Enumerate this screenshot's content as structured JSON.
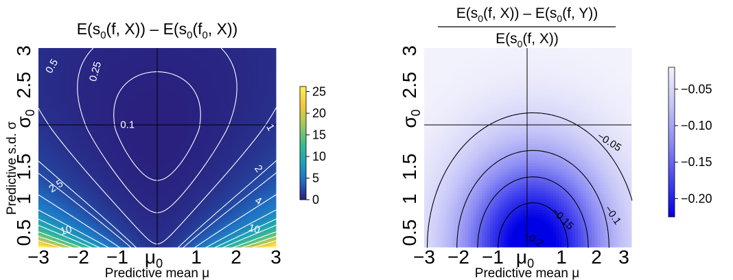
{
  "chart_data": [
    {
      "type": "heatmap",
      "title_parts": {
        "a": "E(s",
        "a_sub": "0",
        "b": "(f, X)) – E(s",
        "b_sub": "0",
        "c": "(f",
        "c_sub": "0",
        "d": ", X))"
      },
      "xlabel": "Predictive mean μ",
      "ylabel_parts": {
        "a": "Predictive s.d. σ",
        "mark": "σ",
        "mark_sub": "0"
      },
      "x_ticks": [
        "−3",
        "−2",
        "−1",
        "1",
        "2",
        "3"
      ],
      "x_tick_values": [
        -3,
        -2,
        -1,
        1,
        2,
        3
      ],
      "x_mark": {
        "label": "μ",
        "sub": "0",
        "value": 0
      },
      "y_ticks": [
        "0.5",
        "1",
        "1.5",
        "2.5",
        "3"
      ],
      "y_tick_values": [
        0.5,
        1,
        1.5,
        2.5,
        3
      ],
      "y_mark_value": 2,
      "xlim": [
        -3,
        3
      ],
      "ylim": [
        0.4,
        3.1
      ],
      "reference_lines": {
        "x": 0,
        "y": 2,
        "color": "#000000"
      },
      "colorbar": {
        "ticks": [
          "0",
          "5",
          "10",
          "15",
          "20",
          "25"
        ],
        "tick_values": [
          0,
          5,
          10,
          15,
          20,
          25
        ],
        "range": [
          0,
          26.2
        ],
        "colors": [
          "#2a1e7c",
          "#1f6fc4",
          "#1ea2b8",
          "#3fbc8c",
          "#a4c95a",
          "#f2c93a",
          "#fdf05a"
        ]
      },
      "contours": {
        "color": "#ffffff",
        "levels": [
          0.1,
          0.25,
          0.5,
          1,
          2,
          2.5,
          4,
          6,
          8,
          10,
          13,
          16,
          20
        ]
      },
      "contour_labels": [
        {
          "text": "0.5",
          "x": -2.65,
          "y": 2.85,
          "angle": -60
        },
        {
          "text": "0.25",
          "x": -1.55,
          "y": 2.78,
          "angle": -75
        },
        {
          "text": "0.1",
          "x": -0.75,
          "y": 2.05,
          "angle": 0
        },
        {
          "text": "1",
          "x": 2.85,
          "y": 2.02,
          "angle": 60
        },
        {
          "text": "2",
          "x": 2.55,
          "y": 1.46,
          "angle": 55
        },
        {
          "text": "2.5",
          "x": -2.55,
          "y": 1.22,
          "angle": -32
        },
        {
          "text": "4",
          "x": 2.55,
          "y": 1.02,
          "angle": 30
        },
        {
          "text": "10",
          "x": -2.3,
          "y": 0.62,
          "angle": -15
        },
        {
          "text": "10",
          "x": 2.45,
          "y": 0.64,
          "angle": 15
        }
      ]
    },
    {
      "type": "heatmap",
      "title_numerator_parts": {
        "a": "E(s",
        "a_sub": "0",
        "b": "(f, X)) – E(s",
        "b_sub": "0",
        "c": "(f, Y))"
      },
      "title_denominator_parts": {
        "a": "E(s",
        "a_sub": "0",
        "b": "(f, X))"
      },
      "xlabel": "Predictive mean μ",
      "x_ticks": [
        "−3",
        "−2",
        "−1",
        "1",
        "2",
        "3"
      ],
      "x_tick_values": [
        -3,
        -2,
        -1,
        1,
        2,
        3
      ],
      "x_mark": {
        "label": "μ",
        "sub": "0",
        "value": 0
      },
      "y_ticks": [
        "0.5",
        "1",
        "1.5",
        "2.5",
        "3"
      ],
      "y_tick_values": [
        0.5,
        1,
        1.5,
        2.5,
        3
      ],
      "y_mark": {
        "label": "σ",
        "sub": "0",
        "value": 2
      },
      "xlim": [
        -3,
        3
      ],
      "ylim": [
        0.4,
        3.1
      ],
      "reference_lines": {
        "x": 0,
        "y": 2,
        "color": "#000000"
      },
      "colorbar": {
        "ticks": [
          "−0.05",
          "−0.10",
          "−0.15",
          "−0.20"
        ],
        "tick_values": [
          -0.05,
          -0.1,
          -0.15,
          -0.2
        ],
        "range": [
          -0.225,
          -0.02
        ],
        "colors": [
          "#0000e6",
          "#4646ee",
          "#8c8cf4",
          "#c4c4f8",
          "#f2f2fc"
        ]
      },
      "contours": {
        "color": "#000000",
        "levels": [
          -0.05,
          -0.1,
          -0.15,
          -0.2
        ]
      },
      "contour_labels": [
        {
          "text": "−0.05",
          "x": 2.35,
          "y": 1.82,
          "angle": 32
        },
        {
          "text": "−0.1",
          "x": 2.45,
          "y": 0.83,
          "angle": 55
        },
        {
          "text": "−0.15",
          "x": 1.0,
          "y": 0.78,
          "angle": 45
        },
        {
          "text": "−0.2",
          "x": 0.15,
          "y": 0.5,
          "angle": 30
        }
      ]
    }
  ]
}
